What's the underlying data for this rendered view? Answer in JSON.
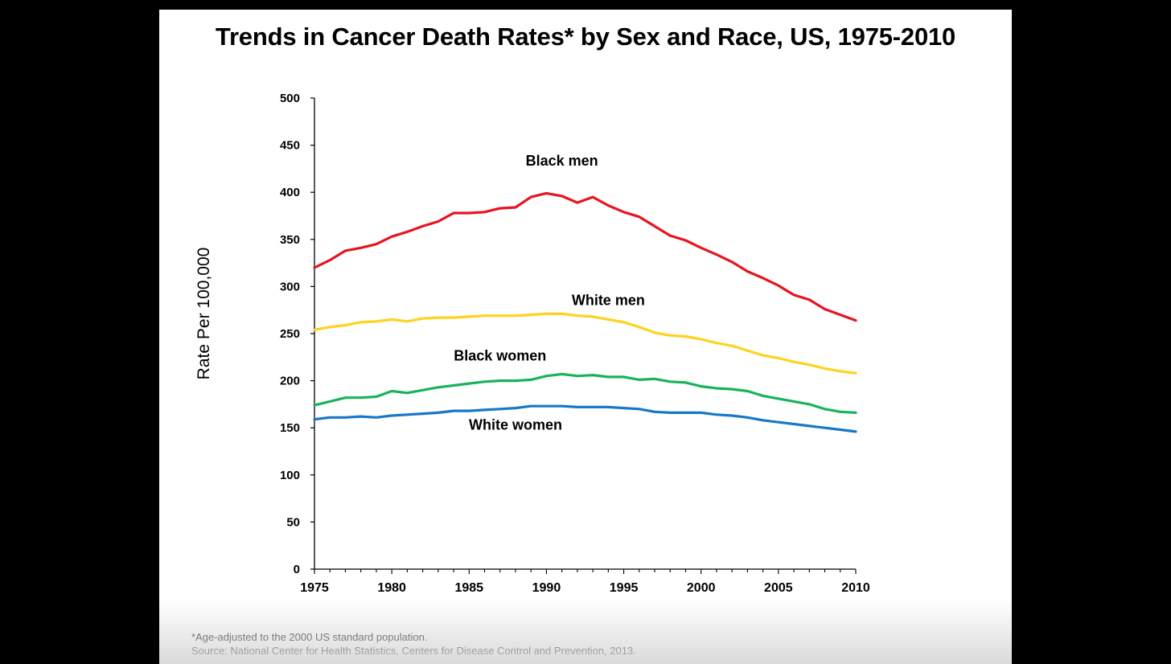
{
  "colors": {
    "page_background": "#000000",
    "slide_background": "#ffffff",
    "black_men": "#e8141f",
    "white_men": "#ffd21e",
    "black_women": "#19b35a",
    "white_women": "#1678c8"
  },
  "footnote": "*Age-adjusted to the 2000 US standard population.",
  "source": "Source: National Center for Health Statistics, Centers for Disease Control and Prevention, 2013.",
  "chart_data": {
    "type": "line",
    "title": "Trends in Cancer Death Rates* by Sex and Race, US, 1975-2010",
    "xlabel": "",
    "ylabel": "Rate Per 100,000",
    "xlim": [
      1975,
      2010
    ],
    "ylim": [
      0,
      500
    ],
    "xticks": [
      1975,
      1980,
      1985,
      1990,
      1995,
      2000,
      2005,
      2010
    ],
    "yticks": [
      0,
      50,
      100,
      150,
      200,
      250,
      300,
      350,
      400,
      450,
      500
    ],
    "grid": false,
    "legend": "inline labels",
    "x": [
      1975,
      1976,
      1977,
      1978,
      1979,
      1980,
      1981,
      1982,
      1983,
      1984,
      1985,
      1986,
      1987,
      1988,
      1989,
      1990,
      1991,
      1992,
      1993,
      1994,
      1995,
      1996,
      1997,
      1998,
      1999,
      2000,
      2001,
      2002,
      2003,
      2004,
      2005,
      2006,
      2007,
      2008,
      2009,
      2010
    ],
    "series": [
      {
        "name": "Black men",
        "color": "#e8141f",
        "values": [
          320,
          328,
          338,
          341,
          345,
          353,
          358,
          364,
          369,
          378,
          378,
          379,
          383,
          384,
          395,
          399,
          396,
          389,
          395,
          386,
          379,
          374,
          364,
          354,
          349,
          341,
          334,
          326,
          316,
          309,
          301,
          291,
          286,
          276,
          270,
          264
        ]
      },
      {
        "name": "White men",
        "color": "#ffd21e",
        "values": [
          254,
          257,
          259,
          262,
          263,
          265,
          263,
          266,
          267,
          267,
          268,
          269,
          269,
          269,
          270,
          271,
          271,
          269,
          268,
          265,
          262,
          257,
          251,
          248,
          247,
          244,
          240,
          237,
          232,
          227,
          224,
          220,
          217,
          213,
          210,
          208
        ]
      },
      {
        "name": "Black women",
        "color": "#19b35a",
        "values": [
          174,
          178,
          182,
          182,
          183,
          189,
          187,
          190,
          193,
          195,
          197,
          199,
          200,
          200,
          201,
          205,
          207,
          205,
          206,
          204,
          204,
          201,
          202,
          199,
          198,
          194,
          192,
          191,
          189,
          184,
          181,
          178,
          175,
          170,
          167,
          166
        ]
      },
      {
        "name": "White women",
        "color": "#1678c8",
        "values": [
          159,
          161,
          161,
          162,
          161,
          163,
          164,
          165,
          166,
          168,
          168,
          169,
          170,
          171,
          173,
          173,
          173,
          172,
          172,
          172,
          171,
          170,
          167,
          166,
          166,
          166,
          164,
          163,
          161,
          158,
          156,
          154,
          152,
          150,
          148,
          146
        ]
      }
    ]
  }
}
